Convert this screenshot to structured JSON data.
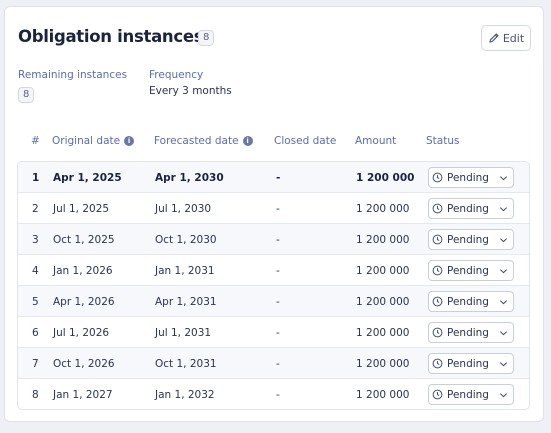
{
  "header": {
    "title": "Obligation instances",
    "count_badge": "8",
    "edit_label": "Edit"
  },
  "meta": {
    "remaining_label": "Remaining instances",
    "remaining_value": "8",
    "frequency_label": "Frequency",
    "frequency_value": "Every 3 months"
  },
  "table": {
    "columns": {
      "num": "#",
      "original": "Original date",
      "forecasted": "Forecasted date",
      "closed": "Closed date",
      "amount": "Amount",
      "status": "Status"
    },
    "rows": [
      {
        "num": "1",
        "original": "Apr 1, 2025",
        "forecasted": "Apr 1, 2030",
        "closed": "-",
        "amount": "1 200 000",
        "status": "Pending"
      },
      {
        "num": "2",
        "original": "Jul 1, 2025",
        "forecasted": "Jul 1, 2030",
        "closed": "-",
        "amount": "1 200 000",
        "status": "Pending"
      },
      {
        "num": "3",
        "original": "Oct 1, 2025",
        "forecasted": "Oct 1, 2030",
        "closed": "-",
        "amount": "1 200 000",
        "status": "Pending"
      },
      {
        "num": "4",
        "original": "Jan 1, 2026",
        "forecasted": "Jan 1, 2031",
        "closed": "-",
        "amount": "1 200 000",
        "status": "Pending"
      },
      {
        "num": "5",
        "original": "Apr 1, 2026",
        "forecasted": "Apr 1, 2031",
        "closed": "-",
        "amount": "1 200 000",
        "status": "Pending"
      },
      {
        "num": "6",
        "original": "Jul 1, 2026",
        "forecasted": "Jul 1, 2031",
        "closed": "-",
        "amount": "1 200 000",
        "status": "Pending"
      },
      {
        "num": "7",
        "original": "Oct 1, 2026",
        "forecasted": "Oct 1, 2031",
        "closed": "-",
        "amount": "1 200 000",
        "status": "Pending"
      },
      {
        "num": "8",
        "original": "Jan 1, 2027",
        "forecasted": "Jan 1, 2032",
        "closed": "-",
        "amount": "1 200 000",
        "status": "Pending"
      }
    ]
  },
  "icons": {
    "edit": "pencil-icon",
    "info": "info-icon",
    "status": "clock-icon",
    "dropdown": "chevron-down-icon"
  },
  "colors": {
    "accent": "#5b6bb0",
    "title": "#1c2340"
  }
}
